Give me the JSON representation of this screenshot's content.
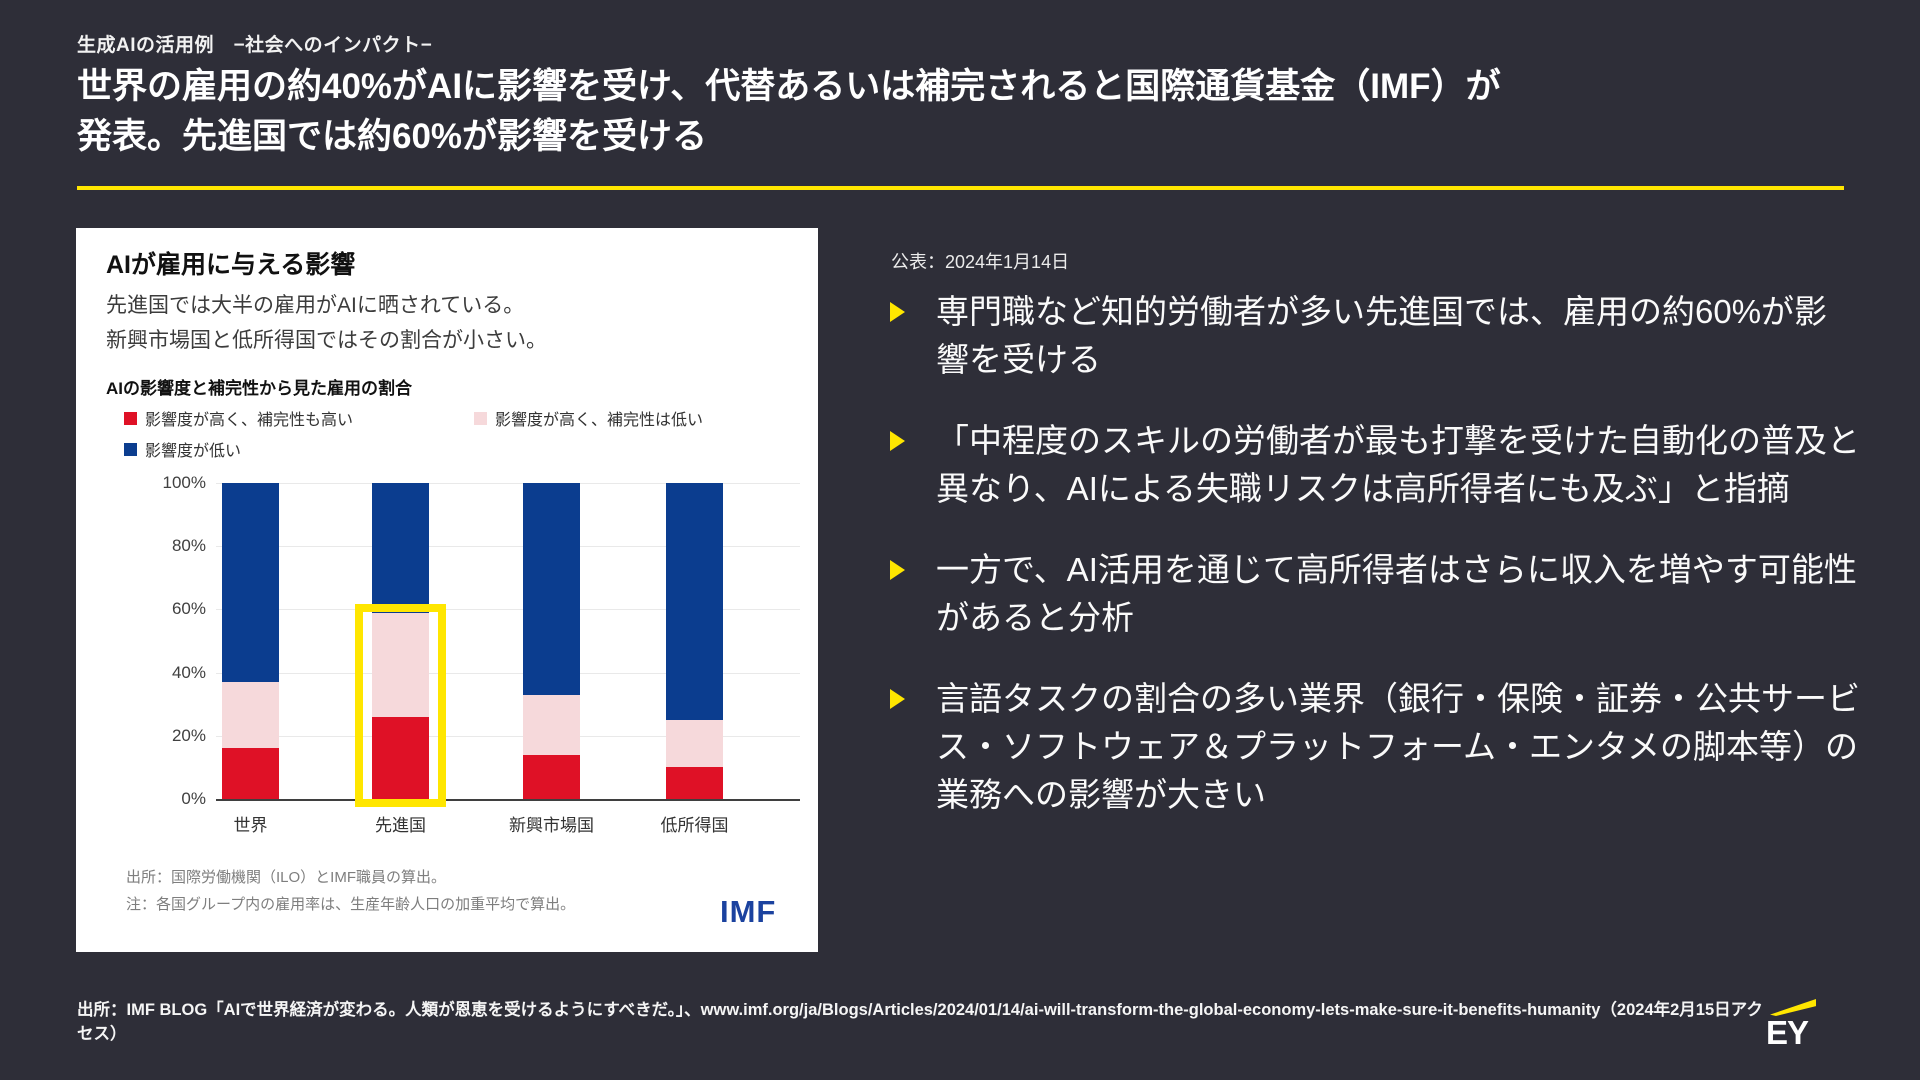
{
  "slide": {
    "kicker": "生成AIの活用例　−社会へのインパクト−",
    "title_line1": "世界の雇用の約40%がAIに影響を受け、代替あるいは補完されると国際通貨基金（IMF）が",
    "title_line2": "発表。先進国では約60%が影響を受ける",
    "source": "出所：IMF BLOG「AIで世界経済が変わる。人類が恩恵を受けるようにすべきだ。」、www.imf.org/ja/Blogs/Articles/2024/01/14/ai-will-transform-the-global-economy-lets-make-sure-it-benefits-humanity（2024年2月15日アクセス）",
    "logo_text": "EY"
  },
  "panel": {
    "title": "AIが雇用に与える影響",
    "subtitle_line1": "先進国では大半の雇用がAIに晒されている。",
    "subtitle_line2": "新興市場国と低所得国ではその割合が小さい。",
    "footnote_source": "出所：国際労働機関（ILO）とIMF職員の算出。",
    "footnote_note": "注：各国グループ内の雇用率は、生産年齢人口の加重平均で算出。",
    "imf_logo": "IMF"
  },
  "right": {
    "date": "公表：2024年1月14日",
    "bullets": [
      "専門職など知的労働者が多い先進国では、雇用の約60%が影響を受ける",
      "「中程度のスキルの労働者が最も打撃を受けた自動化の普及と異なり、AIによる失職リスクは高所得者にも及ぶ」と指摘",
      "一方で、AI活用を通じて高所得者はさらに収入を増やす可能性があると分析",
      "言語タスクの割合の多い業界（銀行・保険・証券・公共サービス・ソフトウェア＆プラットフォーム・エンタメの脚本等）の業務への影響が大きい"
    ]
  },
  "chart_data": {
    "type": "bar",
    "stacked": true,
    "unit": "%",
    "title": "AIの影響度と補完性から見た雇用の割合",
    "categories": [
      "世界",
      "先進国",
      "新興市場国",
      "低所得国"
    ],
    "series": [
      {
        "name": "影響度が高く、補完性も高い",
        "color": "#df1126",
        "values": [
          16,
          26,
          14,
          10
        ]
      },
      {
        "name": "影響度が高く、補完性は低い",
        "color": "#f6d9db",
        "values": [
          21,
          33,
          19,
          15
        ]
      },
      {
        "name": "影響度が低い",
        "color": "#0b3d8f",
        "values": [
          63,
          41,
          67,
          75
        ]
      }
    ],
    "ylim": [
      0,
      100
    ],
    "yticks": [
      "100%",
      "80%",
      "60%",
      "40%",
      "20%",
      "0%"
    ],
    "grid": true,
    "legend_position": "top",
    "highlight": {
      "category": "先進国",
      "range": [
        0,
        60
      ],
      "color": "#ffe600"
    }
  }
}
